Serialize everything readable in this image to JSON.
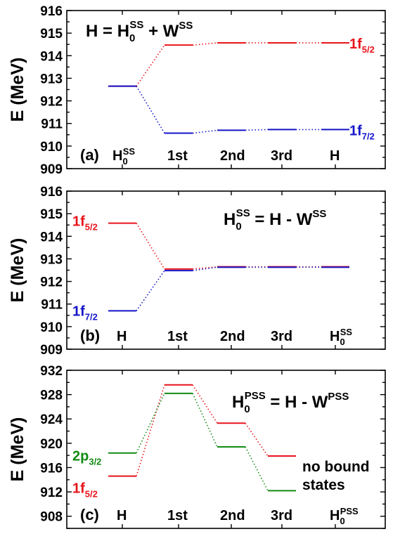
{
  "chart_data": [
    {
      "type": "line",
      "panel_label": "(a)",
      "ylabel": "E (MeV)",
      "ylim": [
        909,
        916
      ],
      "yticks": [
        909,
        910,
        911,
        912,
        913,
        914,
        915,
        916
      ],
      "equation": {
        "lhs": "H",
        "lhs_sub": "",
        "lhs_sup": "",
        "eq": " = ",
        "t1": "H",
        "t1_sub": "0",
        "t1_sup": "SS",
        "op": " + ",
        "t2": "W",
        "t2_sup": "SS"
      },
      "stages": [
        {
          "text": "H",
          "sub": "0",
          "sup": "SS"
        },
        {
          "text": "1st",
          "sub": "",
          "sup": ""
        },
        {
          "text": "2nd",
          "sub": "",
          "sup": ""
        },
        {
          "text": "3rd",
          "sub": "",
          "sup": ""
        },
        {
          "text": "H",
          "sub": "",
          "sup": ""
        }
      ],
      "series": [
        {
          "name": "1f",
          "name_sub": "5/2",
          "label_side": "right",
          "color": "#e8141b",
          "values": [
            912.65,
            914.47,
            914.57,
            914.57,
            914.57
          ]
        },
        {
          "name": "1f",
          "name_sub": "7/2",
          "label_side": "right",
          "color": "#1515c8",
          "values": [
            912.65,
            910.57,
            910.7,
            910.73,
            910.73
          ]
        }
      ]
    },
    {
      "type": "line",
      "panel_label": "(b)",
      "ylabel": "E (MeV)",
      "ylim": [
        909,
        916
      ],
      "yticks": [
        909,
        910,
        911,
        912,
        913,
        914,
        915,
        916
      ],
      "equation": {
        "lhs": "H",
        "lhs_sub": "0",
        "lhs_sup": "SS",
        "eq": " = ",
        "t1": "H",
        "t1_sub": "",
        "t1_sup": "",
        "op": " - ",
        "t2": "W",
        "t2_sup": "SS"
      },
      "stages": [
        {
          "text": "H",
          "sub": "",
          "sup": ""
        },
        {
          "text": "1st",
          "sub": "",
          "sup": ""
        },
        {
          "text": "2nd",
          "sub": "",
          "sup": ""
        },
        {
          "text": "3rd",
          "sub": "",
          "sup": ""
        },
        {
          "text": "H",
          "sub": "0",
          "sup": "SS"
        }
      ],
      "series": [
        {
          "name": "1f",
          "name_sub": "5/2",
          "label_side": "left",
          "color": "#e8141b",
          "values": [
            914.58,
            912.55,
            912.65,
            912.65,
            912.65
          ]
        },
        {
          "name": "1f",
          "name_sub": "7/2",
          "label_side": "left",
          "color": "#1515c8",
          "values": [
            910.7,
            912.48,
            912.63,
            912.63,
            912.63
          ]
        }
      ]
    },
    {
      "type": "line",
      "panel_label": "(c)",
      "ylabel": "E (MeV)",
      "ylim": [
        906,
        932
      ],
      "yticks": [
        908,
        912,
        916,
        920,
        924,
        928,
        932
      ],
      "equation": {
        "lhs": "H",
        "lhs_sub": "0",
        "lhs_sup": "PSS",
        "eq": " = ",
        "t1": "H",
        "t1_sub": "",
        "t1_sup": "",
        "op": " - ",
        "t2": "W",
        "t2_sup": "PSS"
      },
      "stages": [
        {
          "text": "H",
          "sub": "",
          "sup": ""
        },
        {
          "text": "1st",
          "sub": "",
          "sup": ""
        },
        {
          "text": "2nd",
          "sub": "",
          "sup": ""
        },
        {
          "text": "3rd",
          "sub": "",
          "sup": ""
        },
        {
          "text": "H",
          "sub": "0",
          "sup": "PSS"
        }
      ],
      "series": [
        {
          "name": "1f",
          "name_sub": "5/2",
          "label_side": "left",
          "color": "#e8141b",
          "values": [
            914.6,
            929.6,
            923.3,
            917.9,
            null
          ]
        },
        {
          "name": "2p",
          "name_sub": "3/2",
          "label_side": "left",
          "color": "#138a13",
          "values": [
            918.4,
            928.2,
            919.4,
            912.2,
            null
          ]
        }
      ],
      "annotation": [
        "no bound",
        "states"
      ]
    }
  ]
}
